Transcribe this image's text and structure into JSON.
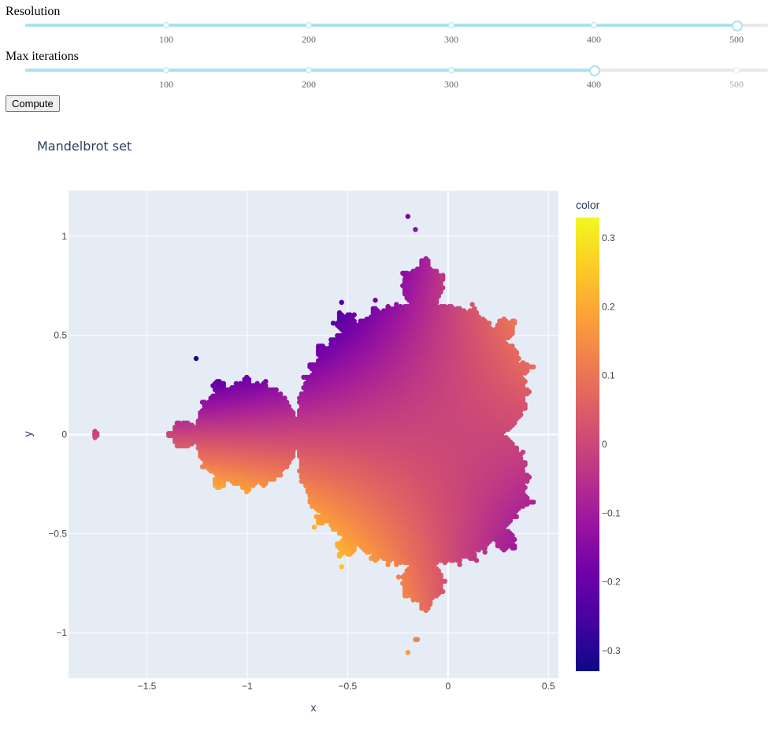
{
  "controls": {
    "resolution": {
      "label": "Resolution",
      "value": 500,
      "min": 1,
      "max": 523,
      "marks": [
        "100",
        "200",
        "300",
        "400",
        "500"
      ]
    },
    "max_iterations": {
      "label": "Max iterations",
      "value": 400,
      "min": 1,
      "max": 523,
      "marks": [
        "100",
        "200",
        "300",
        "400",
        "500"
      ]
    },
    "compute_button": "Compute"
  },
  "chart_data": {
    "type": "scatter",
    "title": "Mandelbrot set",
    "xlabel": "x",
    "ylabel": "y",
    "xlim": [
      -1.89,
      0.55
    ],
    "ylim": [
      -1.23,
      1.23
    ],
    "x_ticks": [
      "−1.5",
      "−1",
      "−0.5",
      "0",
      "0.5"
    ],
    "y_ticks": [
      "1",
      "0.5",
      "0",
      "−0.5",
      "−1"
    ],
    "colorbar": {
      "title": "color",
      "range": [
        -0.33,
        0.33
      ],
      "ticks": [
        "0.3",
        "0.2",
        "0.1",
        "0",
        "−0.1",
        "−0.2",
        "−0.3"
      ],
      "colorscale": [
        "#0d0887",
        "#46039f",
        "#7201a8",
        "#9c179e",
        "#bd3786",
        "#d8576b",
        "#ed7953",
        "#fb9f3a",
        "#fdca26",
        "#f0f921"
      ]
    },
    "points_description": "Points inside the Mandelbrot set on a 500x500 grid (max 400 iterations); color value approx. -(y)*(0.55-x)/2.1 style diagonal gradient",
    "isolated_points": [
      {
        "x": -0.2,
        "y": 1.1
      },
      {
        "x": -0.2,
        "y": -1.1
      },
      {
        "x": -1.76,
        "y": 0.0
      }
    ],
    "background": "#e5ecf6",
    "gridline": "#ffffff"
  }
}
